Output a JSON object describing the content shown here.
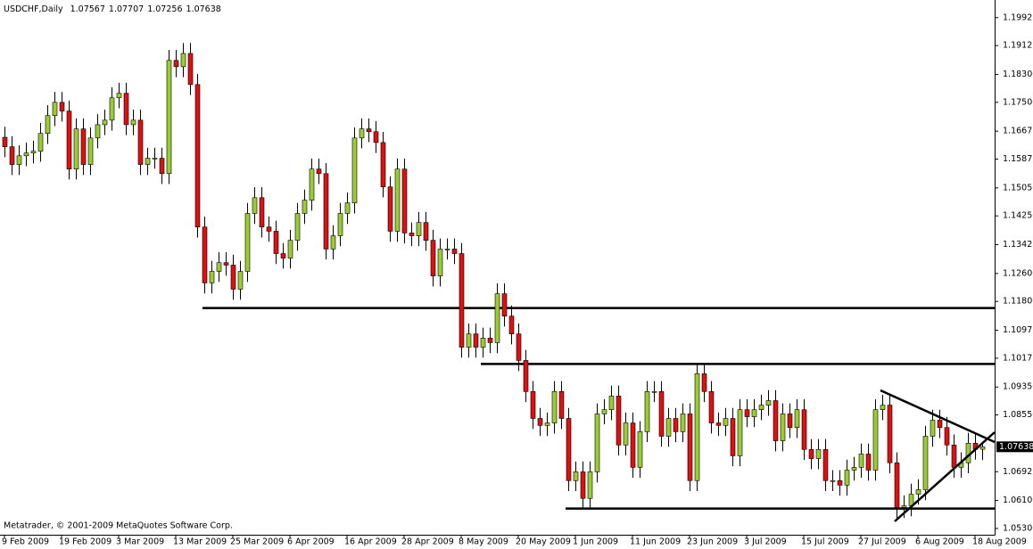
{
  "chart_data": {
    "type": "candlestick",
    "title": "USDCHF,Daily",
    "credit": "Metatrader, © 2001-2009 MetaQuotes Software Corp.",
    "up_color": "#9acd32",
    "down_color": "#dd1111",
    "ylim": [
      1.0512,
      1.2043
    ],
    "yticks": [
      1.19925,
      1.19125,
      {
        "value": 1.183,
        "label": "1.18300"
      },
      {
        "value": 1.175,
        "label": "1.17500"
      },
      1.16675,
      1.15875,
      {
        "value": 1.1505,
        "label": "1.15050"
      },
      {
        "value": 1.1425,
        "label": "1.14250"
      },
      1.13425,
      {
        "value": 1.126,
        "label": "1.12600"
      },
      {
        "value": 1.118,
        "label": "1.11800"
      },
      1.10975,
      1.10175,
      {
        "value": 1.0935,
        "label": "1.09350"
      },
      {
        "value": 1.0855,
        "label": "1.08550"
      },
      1.06925,
      {
        "value": 1.061,
        "label": "1.06100"
      },
      {
        "value": 1.053,
        "label": "1.05300"
      }
    ],
    "levels": [
      1.1161,
      1.1001,
      1.0587
    ],
    "categories": [
      "9 Feb 2009",
      null,
      null,
      null,
      null,
      null,
      null,
      null,
      "19 Feb 2009",
      null,
      null,
      null,
      null,
      null,
      null,
      null,
      "3 Mar 2009",
      null,
      null,
      null,
      null,
      null,
      null,
      null,
      "13 Mar 2009",
      null,
      null,
      null,
      null,
      null,
      null,
      null,
      "25 Mar 2009",
      null,
      null,
      null,
      null,
      null,
      null,
      null,
      "6 Apr 2009",
      null,
      null,
      null,
      null,
      null,
      null,
      null,
      "16 Apr 2009",
      null,
      null,
      null,
      null,
      null,
      null,
      null,
      "28 Apr 2009",
      null,
      null,
      null,
      null,
      null,
      null,
      null,
      "8 May 2009",
      null,
      null,
      null,
      null,
      null,
      null,
      null,
      "20 May 2009",
      null,
      null,
      null,
      null,
      null,
      null,
      null,
      "1 Jun 2009",
      null,
      null,
      null,
      null,
      null,
      null,
      null,
      "11 Jun 2009",
      null,
      null,
      null,
      null,
      null,
      null,
      null,
      "23 Jun 2009",
      null,
      null,
      null,
      null,
      null,
      null,
      null,
      "3 Jul 2009",
      null,
      null,
      null,
      null,
      null,
      null,
      null,
      "15 Jul 2009",
      null,
      null,
      null,
      null,
      null,
      null,
      null,
      "27 Jul 2009",
      null,
      null,
      null,
      null,
      null,
      null,
      null,
      "6 Aug 2009",
      null,
      null,
      null,
      null,
      null,
      null,
      null,
      "18 Aug 2009",
      null
    ],
    "open": [
      1.165,
      1.1623,
      1.1572,
      1.1597,
      1.1605,
      1.161,
      1.1661,
      1.1712,
      1.175,
      1.1725,
      1.1559,
      1.1674,
      1.1572,
      1.1648,
      1.1686,
      1.1699,
      1.1763,
      1.1776,
      1.1686,
      1.1699,
      1.1572,
      1.159,
      1.159,
      1.1546,
      1.187,
      1.1852,
      1.189,
      1.1801,
      1.1393,
      1.1233,
      1.1266,
      1.1291,
      1.1284,
      1.1215,
      1.1266,
      1.1432,
      1.1477,
      1.1393,
      1.1381,
      1.1317,
      1.1304,
      1.1355,
      1.1432,
      1.147,
      1.1559,
      1.1546,
      1.133,
      1.1368,
      1.1432,
      1.1462,
      1.1648,
      1.1674,
      1.1666,
      1.1635,
      1.1508,
      1.1381,
      1.1559,
      1.1376,
      1.1368,
      1.1406,
      1.1355,
      1.1253,
      1.133,
      1.133,
      1.1317,
      1.1049,
      1.1087,
      1.1049,
      1.1075,
      1.1062,
      1.1202,
      1.1138,
      1.1087,
      1.1011,
      1.0922,
      1.0845,
      1.0825,
      1.0832,
      1.0922,
      1.0845,
      1.0667,
      1.0692,
      1.0616,
      1.0692,
      1.0858,
      1.087,
      1.0909,
      1.0769,
      1.0832,
      1.0705,
      1.0807,
      1.0922,
      1.0922,
      1.0794,
      1.0845,
      1.0807,
      1.0858,
      1.0667,
      1.0973,
      1.0922,
      1.0832,
      1.0825,
      1.0845,
      1.0738,
      1.087,
      1.085,
      1.087,
      1.0883,
      1.0896,
      1.0781,
      1.0858,
      1.0819,
      1.087,
      1.0756,
      1.073,
      1.0756,
      1.0667,
      1.0667,
      1.0654,
      1.0697,
      1.0705,
      1.0743,
      1.0697,
      1.087,
      1.0883,
      1.0718,
      1.059,
      1.0595,
      1.0628,
      1.0641,
      1.0794,
      1.084,
      1.0819,
      1.0769,
      1.0705,
      1.0718,
      1.0774,
      1.07567
    ],
    "high": [
      1.168,
      1.1653,
      1.1627,
      1.1635,
      1.164,
      1.1691,
      1.1742,
      1.178,
      1.178,
      1.1755,
      1.1704,
      1.1704,
      1.1678,
      1.1716,
      1.1729,
      1.1793,
      1.1806,
      1.1806,
      1.1729,
      1.1729,
      1.162,
      1.162,
      1.162,
      1.19,
      1.19,
      1.192,
      1.192,
      1.1831,
      1.1423,
      1.1296,
      1.1321,
      1.1321,
      1.1314,
      1.1296,
      1.1462,
      1.1507,
      1.1507,
      1.1423,
      1.1411,
      1.1347,
      1.1385,
      1.1462,
      1.15,
      1.1589,
      1.1589,
      1.1576,
      1.1398,
      1.1462,
      1.1492,
      1.1678,
      1.1704,
      1.1704,
      1.1696,
      1.1665,
      1.1538,
      1.1589,
      1.1589,
      1.1406,
      1.1436,
      1.1436,
      1.1385,
      1.136,
      1.136,
      1.136,
      1.1347,
      1.1117,
      1.1117,
      1.1105,
      1.1105,
      1.1232,
      1.1232,
      1.1168,
      1.1117,
      1.1041,
      1.0952,
      1.0875,
      1.0862,
      1.0952,
      1.0952,
      1.0875,
      1.0722,
      1.0722,
      1.0722,
      1.0888,
      1.09,
      1.0939,
      1.0939,
      1.0862,
      1.0862,
      1.0837,
      1.0952,
      1.0952,
      1.0952,
      1.0875,
      1.0875,
      1.0888,
      1.0888,
      1.1003,
      1.1003,
      1.0952,
      1.0862,
      1.0875,
      1.0875,
      1.09,
      1.09,
      1.09,
      1.0913,
      1.0926,
      1.0926,
      1.0888,
      1.0888,
      1.09,
      1.09,
      1.0786,
      1.0786,
      1.0786,
      1.0697,
      1.0697,
      1.0727,
      1.0735,
      1.0773,
      1.0773,
      1.09,
      1.0913,
      1.0913,
      1.0748,
      1.0625,
      1.0658,
      1.0671,
      1.0824,
      1.087,
      1.087,
      1.0849,
      1.0799,
      1.0748,
      1.0804,
      1.0804,
      1.07707
    ],
    "low": [
      1.1593,
      1.1542,
      1.1542,
      1.1567,
      1.1575,
      1.158,
      1.1631,
      1.1682,
      1.1695,
      1.1529,
      1.1529,
      1.1542,
      1.1542,
      1.1618,
      1.1656,
      1.1669,
      1.1733,
      1.1656,
      1.1656,
      1.1542,
      1.1542,
      1.156,
      1.1516,
      1.1516,
      1.1822,
      1.1822,
      1.1771,
      1.1363,
      1.1203,
      1.1203,
      1.1236,
      1.1254,
      1.1185,
      1.1185,
      1.1236,
      1.1402,
      1.1363,
      1.1351,
      1.1287,
      1.1274,
      1.1274,
      1.1325,
      1.1402,
      1.144,
      1.1516,
      1.13,
      1.13,
      1.1338,
      1.1402,
      1.1432,
      1.1618,
      1.1636,
      1.1605,
      1.1478,
      1.1351,
      1.1351,
      1.1346,
      1.1338,
      1.1338,
      1.1325,
      1.1223,
      1.1223,
      1.13,
      1.1287,
      1.1019,
      1.1019,
      1.1019,
      1.1019,
      1.1032,
      1.1032,
      1.1108,
      1.1057,
      1.0981,
      1.0892,
      1.0815,
      1.0795,
      1.0795,
      1.0802,
      1.0815,
      1.0637,
      1.0637,
      1.0586,
      1.0586,
      1.0662,
      1.0828,
      1.084,
      1.0739,
      1.0739,
      1.0675,
      1.0675,
      1.0777,
      1.0892,
      1.0764,
      1.0764,
      1.0777,
      1.0777,
      1.0637,
      1.0637,
      1.0892,
      1.0802,
      1.0795,
      1.0795,
      1.0708,
      1.0708,
      1.082,
      1.082,
      1.084,
      1.0853,
      1.0751,
      1.0751,
      1.0789,
      1.0789,
      1.0726,
      1.07,
      1.07,
      1.0637,
      1.0637,
      1.0624,
      1.0624,
      1.0667,
      1.0675,
      1.0667,
      1.0667,
      1.084,
      1.0688,
      1.056,
      1.056,
      1.0565,
      1.0598,
      1.0611,
      1.0764,
      1.0789,
      1.0739,
      1.0675,
      1.0675,
      1.0688,
      1.0727,
      1.07256
    ],
    "close": [
      1.1623,
      1.1572,
      1.1597,
      1.1605,
      1.161,
      1.1661,
      1.1712,
      1.175,
      1.1725,
      1.1559,
      1.1674,
      1.1572,
      1.1648,
      1.1686,
      1.1699,
      1.1763,
      1.1776,
      1.1686,
      1.1699,
      1.1572,
      1.159,
      1.159,
      1.1546,
      1.187,
      1.1852,
      1.189,
      1.1801,
      1.1393,
      1.1233,
      1.1266,
      1.1291,
      1.1284,
      1.1215,
      1.1266,
      1.1432,
      1.1477,
      1.1393,
      1.1381,
      1.1317,
      1.1304,
      1.1355,
      1.1432,
      1.147,
      1.1559,
      1.1546,
      1.133,
      1.1368,
      1.1432,
      1.1462,
      1.1648,
      1.1674,
      1.1666,
      1.1635,
      1.1508,
      1.1381,
      1.1559,
      1.1376,
      1.1368,
      1.1406,
      1.1355,
      1.1253,
      1.133,
      1.133,
      1.1317,
      1.1049,
      1.1087,
      1.1049,
      1.1075,
      1.1062,
      1.1202,
      1.1138,
      1.1087,
      1.1011,
      1.0922,
      1.0845,
      1.0825,
      1.0832,
      1.0922,
      1.0845,
      1.0667,
      1.0692,
      1.0616,
      1.0692,
      1.0858,
      1.087,
      1.0909,
      1.0769,
      1.0832,
      1.0705,
      1.0807,
      1.0922,
      1.0922,
      1.0794,
      1.0845,
      1.0807,
      1.0858,
      1.0667,
      1.0973,
      1.0922,
      1.0832,
      1.0825,
      1.0845,
      1.0738,
      1.087,
      1.085,
      1.087,
      1.0883,
      1.0896,
      1.0781,
      1.0858,
      1.0819,
      1.087,
      1.0756,
      1.073,
      1.0756,
      1.0667,
      1.0667,
      1.0654,
      1.0697,
      1.0705,
      1.0743,
      1.0697,
      1.087,
      1.0883,
      1.0718,
      1.059,
      1.0595,
      1.0628,
      1.0641,
      1.0794,
      1.084,
      1.0819,
      1.0769,
      1.0705,
      1.0718,
      1.0774,
      1.07567,
      1.07638
    ]
  }
}
